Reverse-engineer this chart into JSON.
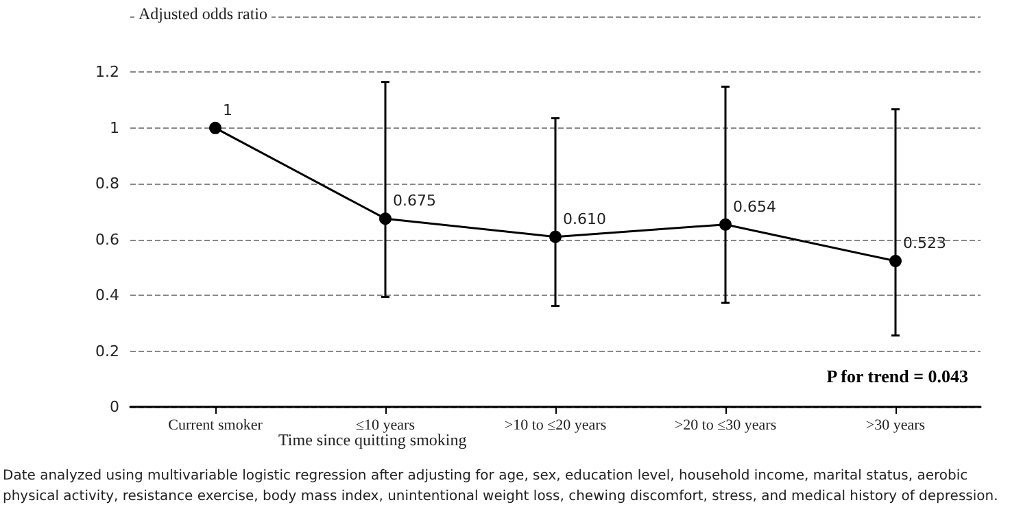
{
  "chart_data": {
    "type": "line",
    "ylabel": "Adjusted odds ratio",
    "xlabel": "Time since quitting smoking",
    "categories": [
      "Current smoker",
      "≤10 years",
      ">10 to ≤20 years",
      ">20 to ≤30 years",
      ">30 years"
    ],
    "series": [
      {
        "color": "#000000",
        "values": [
          1,
          0.675,
          0.61,
          0.654,
          0.523
        ],
        "value_labels": [
          "1",
          "0.675",
          "0.610",
          "0.654",
          "0.523"
        ],
        "errors": [
          null,
          [
            0.394,
            1.165
          ],
          [
            0.362,
            1.035
          ],
          [
            0.373,
            1.148
          ],
          [
            0.256,
            1.067
          ]
        ]
      }
    ],
    "ylim": [
      0,
      1.4
    ],
    "yticks": [
      0,
      0.2,
      0.4,
      0.6,
      0.8,
      1,
      1.2,
      {
        "value": 1.4,
        "label": null
      }
    ],
    "grid": "y",
    "marker": "circle",
    "line_style": "solid",
    "annotations": [
      "P for trend = 0.043",
      "Date analyzed using multivariable logistic regression after adjusting for age, sex, education level, household income, marital status, aerobic physical activity, resistance exercise, body mass index, unintentional weight loss, chewing discomfort, stress, and medical history of depression."
    ]
  }
}
